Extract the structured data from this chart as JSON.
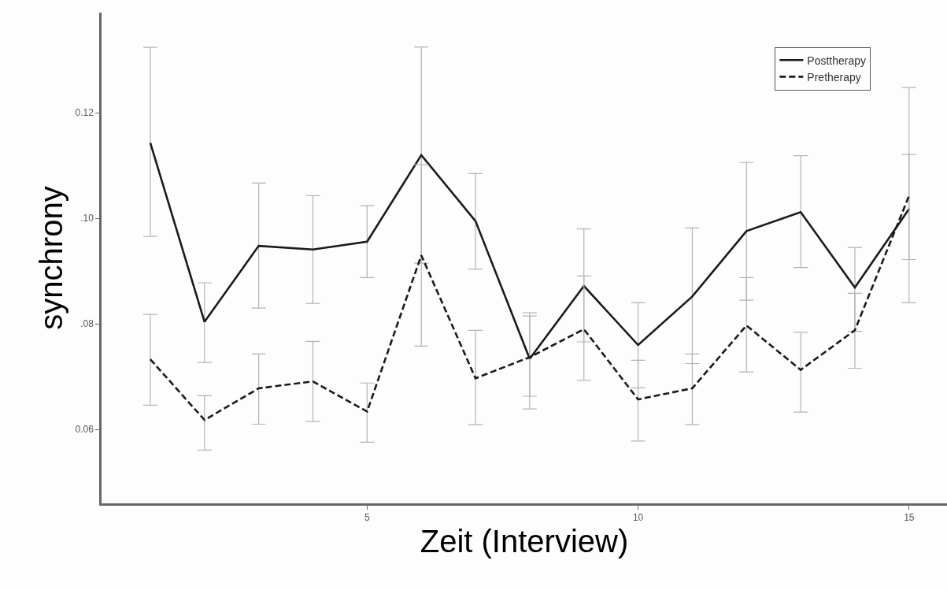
{
  "chart_data": {
    "type": "line",
    "xlabel": "Zeit (Interview)",
    "ylabel": "synchrony",
    "x": [
      1,
      2,
      3,
      4,
      5,
      6,
      7,
      8,
      9,
      10,
      11,
      12,
      13,
      14,
      15
    ],
    "series": [
      {
        "name": "Posttherapy",
        "color": "#1a1a1a",
        "line_style": "solid",
        "values": [
          0.1143,
          0.0804,
          0.0948,
          0.0941,
          0.0956,
          0.112,
          0.0995,
          0.0734,
          0.0872,
          0.076,
          0.0852,
          0.0976,
          0.1012,
          0.0869,
          0.1018
        ],
        "errors": [
          [
            0.0966,
            0.1324
          ],
          [
            0.0727,
            0.0878
          ],
          [
            0.083,
            0.1067
          ],
          [
            0.0839,
            0.1043
          ],
          [
            0.0888,
            0.1024
          ],
          [
            0.0915,
            0.1325
          ],
          [
            0.0904,
            0.1085
          ],
          [
            0.0639,
            0.0821
          ],
          [
            0.0693,
            0.098
          ],
          [
            0.0679,
            0.084
          ],
          [
            0.0725,
            0.0982
          ],
          [
            0.0845,
            0.1106
          ],
          [
            0.0907,
            0.1119
          ],
          [
            0.0786,
            0.0945
          ],
          [
            0.0922,
            0.1121
          ]
        ]
      },
      {
        "name": "Pretherapy",
        "color": "#1a1a1a",
        "line_style": "dashed",
        "values": [
          0.0733,
          0.0618,
          0.0678,
          0.0691,
          0.0634,
          0.093,
          0.0697,
          0.0737,
          0.079,
          0.0657,
          0.0678,
          0.0797,
          0.0713,
          0.0788,
          0.1043
        ],
        "errors": [
          [
            0.0646,
            0.0818
          ],
          [
            0.0561,
            0.0664
          ],
          [
            0.061,
            0.0743
          ],
          [
            0.0615,
            0.0767
          ],
          [
            0.0576,
            0.0688
          ],
          [
            0.0758,
            0.1102
          ],
          [
            0.0609,
            0.0788
          ],
          [
            0.0663,
            0.0815
          ],
          [
            0.0766,
            0.0891
          ],
          [
            0.0578,
            0.0731
          ],
          [
            0.0609,
            0.0743
          ],
          [
            0.0709,
            0.0888
          ],
          [
            0.0633,
            0.0784
          ],
          [
            0.0716,
            0.0858
          ],
          [
            0.084,
            0.1248
          ]
        ]
      }
    ],
    "xlim": [
      0.1,
      15.7
    ],
    "xticks": [
      5,
      10,
      15
    ],
    "ylim": [
      0.046,
      0.139
    ],
    "yticks": [
      {
        "value": 0.06,
        "label": "0.06"
      },
      {
        "value": 0.08,
        "label": ".08"
      },
      {
        "value": 0.1,
        "label": ".10"
      },
      {
        "value": 0.12,
        "label": "0.12"
      }
    ],
    "legend": "top right",
    "marker": "none"
  }
}
